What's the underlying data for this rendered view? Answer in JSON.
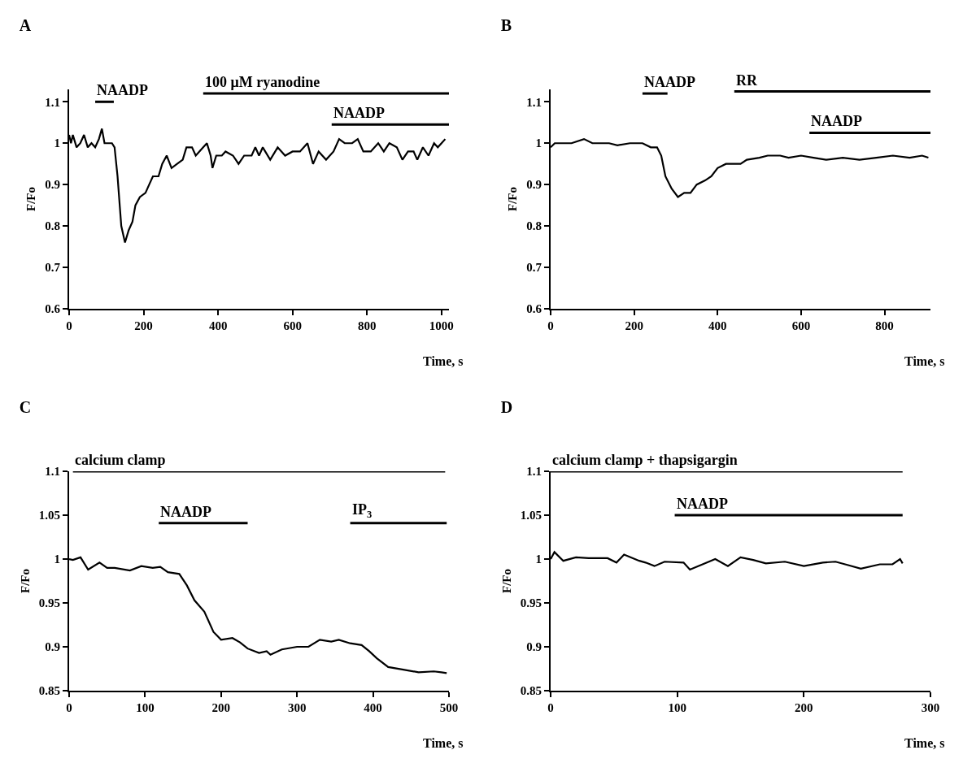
{
  "chart_data": [
    {
      "type": "line",
      "title": "A",
      "xlabel": "Time, s",
      "ylabel": "F/Fo",
      "xlim": [
        0,
        1020
      ],
      "xticks": [
        0,
        200,
        400,
        600,
        800,
        1000
      ],
      "ylim": [
        0.6,
        1.13
      ],
      "yticks": [
        0.6,
        0.7,
        0.8,
        0.9,
        1,
        1.1
      ],
      "grid": false,
      "legend": false,
      "marker": "none",
      "line_style": "solid",
      "series": [
        {
          "color": "#000000",
          "x": [
            0,
            5,
            10,
            20,
            30,
            40,
            50,
            60,
            70,
            80,
            88,
            95,
            105,
            115,
            122,
            130,
            140,
            150,
            160,
            170,
            178,
            190,
            205,
            215,
            225,
            240,
            250,
            262,
            275,
            290,
            305,
            315,
            330,
            340,
            360,
            370,
            380,
            385,
            395,
            410,
            420,
            440,
            455,
            470,
            490,
            500,
            510,
            520,
            540,
            560,
            580,
            600,
            620,
            640,
            655,
            670,
            690,
            710,
            725,
            740,
            760,
            775,
            790,
            810,
            830,
            845,
            860,
            880,
            895,
            910,
            925,
            935,
            950,
            965,
            980,
            990,
            1000,
            1010
          ],
          "values": [
            1.02,
            1.0,
            1.02,
            0.99,
            1.0,
            1.02,
            0.99,
            1.0,
            0.99,
            1.01,
            1.035,
            1.0,
            1.0,
            1.0,
            0.99,
            0.92,
            0.8,
            0.76,
            0.79,
            0.81,
            0.85,
            0.87,
            0.88,
            0.9,
            0.92,
            0.92,
            0.95,
            0.97,
            0.94,
            0.95,
            0.96,
            0.99,
            0.99,
            0.97,
            0.99,
            1.0,
            0.97,
            0.94,
            0.97,
            0.97,
            0.98,
            0.97,
            0.95,
            0.97,
            0.97,
            0.99,
            0.97,
            0.99,
            0.96,
            0.99,
            0.97,
            0.98,
            0.98,
            1.0,
            0.95,
            0.98,
            0.96,
            0.98,
            1.01,
            1.0,
            1.0,
            1.01,
            0.98,
            0.98,
            1.0,
            0.98,
            1.0,
            0.99,
            0.96,
            0.98,
            0.98,
            0.96,
            0.99,
            0.97,
            1.0,
            0.99,
            1.0,
            1.01
          ]
        },
        {
          "name": "NAADP",
          "color": "#000000",
          "x": [
            70,
            120
          ],
          "values": [
            1.1,
            1.1
          ]
        },
        {
          "name": "100 μM ryanodine",
          "color": "#000000",
          "x": [
            360,
            1020
          ],
          "values": [
            1.12,
            1.12
          ]
        },
        {
          "name": "NAADP",
          "color": "#000000",
          "x": [
            705,
            1020
          ],
          "values": [
            1.045,
            1.045
          ]
        }
      ]
    },
    {
      "type": "line",
      "title": "B",
      "xlabel": "Time, s",
      "ylabel": "F/Fo",
      "xlim": [
        0,
        910
      ],
      "xticks": [
        0,
        200,
        400,
        600,
        800
      ],
      "ylim": [
        0.6,
        1.13
      ],
      "yticks": [
        0.6,
        0.7,
        0.8,
        0.9,
        1,
        1.1
      ],
      "grid": false,
      "legend": false,
      "marker": "none",
      "line_style": "solid",
      "series": [
        {
          "color": "#000000",
          "x": [
            0,
            10,
            50,
            80,
            100,
            140,
            160,
            190,
            220,
            240,
            255,
            265,
            275,
            290,
            305,
            320,
            335,
            350,
            370,
            385,
            400,
            420,
            440,
            455,
            470,
            500,
            520,
            550,
            570,
            600,
            630,
            660,
            700,
            740,
            780,
            820,
            860,
            890,
            905
          ],
          "values": [
            0.99,
            1.0,
            1.0,
            1.01,
            1.0,
            1.0,
            0.995,
            1.0,
            1.0,
            0.99,
            0.99,
            0.97,
            0.92,
            0.89,
            0.87,
            0.88,
            0.88,
            0.9,
            0.91,
            0.92,
            0.94,
            0.95,
            0.95,
            0.95,
            0.96,
            0.965,
            0.97,
            0.97,
            0.965,
            0.97,
            0.965,
            0.96,
            0.965,
            0.96,
            0.965,
            0.97,
            0.965,
            0.97,
            0.965
          ]
        },
        {
          "name": "NAADP",
          "color": "#000000",
          "x": [
            220,
            280
          ],
          "values": [
            1.12,
            1.12
          ]
        },
        {
          "name": "RR",
          "color": "#000000",
          "x": [
            440,
            910
          ],
          "values": [
            1.125,
            1.125
          ]
        },
        {
          "name": "NAADP",
          "color": "#000000",
          "x": [
            620,
            910
          ],
          "values": [
            1.025,
            1.025
          ]
        }
      ]
    },
    {
      "type": "line",
      "title": "C",
      "xlabel": "Time, s",
      "ylabel": "F/Fo",
      "xlim": [
        0,
        500
      ],
      "xticks": [
        0,
        100,
        200,
        300,
        400,
        500
      ],
      "ylim": [
        0.85,
        1.1
      ],
      "yticks": [
        0.85,
        0.9,
        0.95,
        1,
        1.05,
        1.1
      ],
      "grid": false,
      "legend": false,
      "marker": "none",
      "line_style": "solid",
      "series": [
        {
          "color": "#000000",
          "x": [
            0,
            5,
            15,
            25,
            40,
            50,
            60,
            80,
            95,
            110,
            120,
            130,
            145,
            155,
            165,
            178,
            190,
            200,
            215,
            225,
            235,
            250,
            260,
            265,
            280,
            300,
            315,
            330,
            345,
            355,
            370,
            385,
            395,
            405,
            420,
            440,
            460,
            480,
            490,
            497
          ],
          "values": [
            1.0,
            0.999,
            1.002,
            0.988,
            0.996,
            0.99,
            0.99,
            0.987,
            0.992,
            0.99,
            0.991,
            0.985,
            0.983,
            0.97,
            0.953,
            0.94,
            0.917,
            0.908,
            0.91,
            0.905,
            0.898,
            0.893,
            0.895,
            0.891,
            0.897,
            0.9,
            0.9,
            0.908,
            0.906,
            0.908,
            0.904,
            0.902,
            0.895,
            0.887,
            0.877,
            0.874,
            0.871,
            0.872,
            0.871,
            0.87
          ]
        },
        {
          "name": "calcium clamp",
          "color": "#000000",
          "x": [
            5,
            495
          ],
          "values": [
            1.1,
            1.1
          ]
        },
        {
          "name": "NAADP",
          "color": "#000000",
          "x": [
            118,
            235
          ],
          "values": [
            1.041,
            1.041
          ]
        },
        {
          "name": "IP$_{3}$",
          "color": "#000000",
          "x": [
            370,
            497
          ],
          "values": [
            1.041,
            1.041
          ]
        }
      ]
    },
    {
      "type": "line",
      "title": "D",
      "xlabel": "Time, s",
      "ylabel": "F/Fo",
      "xlim": [
        0,
        300
      ],
      "xticks": [
        0,
        100,
        200,
        300
      ],
      "ylim": [
        0.85,
        1.1
      ],
      "yticks": [
        0.85,
        0.9,
        0.95,
        1,
        1.05,
        1.1
      ],
      "grid": false,
      "legend": false,
      "marker": "none",
      "line_style": "solid",
      "series": [
        {
          "color": "#000000",
          "x": [
            0,
            3,
            10,
            20,
            30,
            45,
            52,
            58,
            70,
            75,
            82,
            90,
            105,
            110,
            120,
            130,
            140,
            150,
            160,
            170,
            185,
            200,
            215,
            225,
            235,
            245,
            260,
            270,
            276,
            278
          ],
          "values": [
            1.0,
            1.008,
            0.998,
            1.002,
            1.001,
            1.001,
            0.996,
            1.005,
            0.998,
            0.996,
            0.992,
            0.997,
            0.996,
            0.988,
            0.994,
            1.0,
            0.992,
            1.002,
            0.999,
            0.995,
            0.997,
            0.992,
            0.996,
            0.997,
            0.993,
            0.989,
            0.994,
            0.994,
            1.0,
            0.995
          ]
        },
        {
          "name": "calcium clamp + thapsigargin",
          "color": "#000000",
          "x": [
            0,
            278
          ],
          "values": [
            1.1,
            1.1
          ]
        },
        {
          "name": "NAADP",
          "color": "#000000",
          "x": [
            98,
            278
          ],
          "values": [
            1.05,
            1.05
          ]
        }
      ]
    }
  ]
}
